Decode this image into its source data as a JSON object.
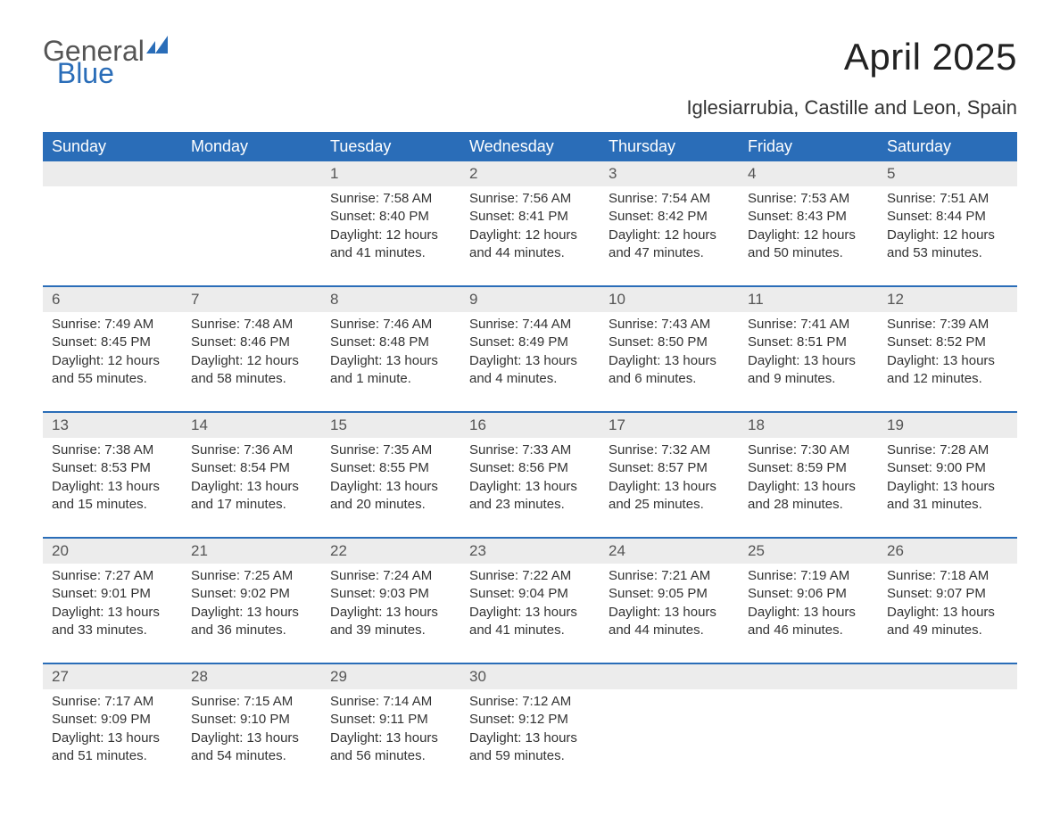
{
  "brand": {
    "word1": "General",
    "word2": "Blue",
    "logo_color": "#2a6db8",
    "text_color": "#555555"
  },
  "title": "April 2025",
  "location": "Iglesiarrubia, Castille and Leon, Spain",
  "colors": {
    "header_bg": "#2a6db8",
    "header_text": "#ffffff",
    "daynum_bg": "#ececec",
    "daynum_text": "#555555",
    "body_text": "#333333",
    "week_divider": "#2a6db8",
    "page_bg": "#ffffff"
  },
  "fonts": {
    "family": "Arial, Helvetica, sans-serif",
    "title_size_pt": 32,
    "location_size_pt": 16,
    "header_size_pt": 14,
    "body_size_pt": 11
  },
  "day_headers": [
    "Sunday",
    "Monday",
    "Tuesday",
    "Wednesday",
    "Thursday",
    "Friday",
    "Saturday"
  ],
  "weeks": [
    [
      {
        "day": "",
        "sunrise": "",
        "sunset": "",
        "daylight": ""
      },
      {
        "day": "",
        "sunrise": "",
        "sunset": "",
        "daylight": ""
      },
      {
        "day": "1",
        "sunrise": "Sunrise: 7:58 AM",
        "sunset": "Sunset: 8:40 PM",
        "daylight": "Daylight: 12 hours and 41 minutes."
      },
      {
        "day": "2",
        "sunrise": "Sunrise: 7:56 AM",
        "sunset": "Sunset: 8:41 PM",
        "daylight": "Daylight: 12 hours and 44 minutes."
      },
      {
        "day": "3",
        "sunrise": "Sunrise: 7:54 AM",
        "sunset": "Sunset: 8:42 PM",
        "daylight": "Daylight: 12 hours and 47 minutes."
      },
      {
        "day": "4",
        "sunrise": "Sunrise: 7:53 AM",
        "sunset": "Sunset: 8:43 PM",
        "daylight": "Daylight: 12 hours and 50 minutes."
      },
      {
        "day": "5",
        "sunrise": "Sunrise: 7:51 AM",
        "sunset": "Sunset: 8:44 PM",
        "daylight": "Daylight: 12 hours and 53 minutes."
      }
    ],
    [
      {
        "day": "6",
        "sunrise": "Sunrise: 7:49 AM",
        "sunset": "Sunset: 8:45 PM",
        "daylight": "Daylight: 12 hours and 55 minutes."
      },
      {
        "day": "7",
        "sunrise": "Sunrise: 7:48 AM",
        "sunset": "Sunset: 8:46 PM",
        "daylight": "Daylight: 12 hours and 58 minutes."
      },
      {
        "day": "8",
        "sunrise": "Sunrise: 7:46 AM",
        "sunset": "Sunset: 8:48 PM",
        "daylight": "Daylight: 13 hours and 1 minute."
      },
      {
        "day": "9",
        "sunrise": "Sunrise: 7:44 AM",
        "sunset": "Sunset: 8:49 PM",
        "daylight": "Daylight: 13 hours and 4 minutes."
      },
      {
        "day": "10",
        "sunrise": "Sunrise: 7:43 AM",
        "sunset": "Sunset: 8:50 PM",
        "daylight": "Daylight: 13 hours and 6 minutes."
      },
      {
        "day": "11",
        "sunrise": "Sunrise: 7:41 AM",
        "sunset": "Sunset: 8:51 PM",
        "daylight": "Daylight: 13 hours and 9 minutes."
      },
      {
        "day": "12",
        "sunrise": "Sunrise: 7:39 AM",
        "sunset": "Sunset: 8:52 PM",
        "daylight": "Daylight: 13 hours and 12 minutes."
      }
    ],
    [
      {
        "day": "13",
        "sunrise": "Sunrise: 7:38 AM",
        "sunset": "Sunset: 8:53 PM",
        "daylight": "Daylight: 13 hours and 15 minutes."
      },
      {
        "day": "14",
        "sunrise": "Sunrise: 7:36 AM",
        "sunset": "Sunset: 8:54 PM",
        "daylight": "Daylight: 13 hours and 17 minutes."
      },
      {
        "day": "15",
        "sunrise": "Sunrise: 7:35 AM",
        "sunset": "Sunset: 8:55 PM",
        "daylight": "Daylight: 13 hours and 20 minutes."
      },
      {
        "day": "16",
        "sunrise": "Sunrise: 7:33 AM",
        "sunset": "Sunset: 8:56 PM",
        "daylight": "Daylight: 13 hours and 23 minutes."
      },
      {
        "day": "17",
        "sunrise": "Sunrise: 7:32 AM",
        "sunset": "Sunset: 8:57 PM",
        "daylight": "Daylight: 13 hours and 25 minutes."
      },
      {
        "day": "18",
        "sunrise": "Sunrise: 7:30 AM",
        "sunset": "Sunset: 8:59 PM",
        "daylight": "Daylight: 13 hours and 28 minutes."
      },
      {
        "day": "19",
        "sunrise": "Sunrise: 7:28 AM",
        "sunset": "Sunset: 9:00 PM",
        "daylight": "Daylight: 13 hours and 31 minutes."
      }
    ],
    [
      {
        "day": "20",
        "sunrise": "Sunrise: 7:27 AM",
        "sunset": "Sunset: 9:01 PM",
        "daylight": "Daylight: 13 hours and 33 minutes."
      },
      {
        "day": "21",
        "sunrise": "Sunrise: 7:25 AM",
        "sunset": "Sunset: 9:02 PM",
        "daylight": "Daylight: 13 hours and 36 minutes."
      },
      {
        "day": "22",
        "sunrise": "Sunrise: 7:24 AM",
        "sunset": "Sunset: 9:03 PM",
        "daylight": "Daylight: 13 hours and 39 minutes."
      },
      {
        "day": "23",
        "sunrise": "Sunrise: 7:22 AM",
        "sunset": "Sunset: 9:04 PM",
        "daylight": "Daylight: 13 hours and 41 minutes."
      },
      {
        "day": "24",
        "sunrise": "Sunrise: 7:21 AM",
        "sunset": "Sunset: 9:05 PM",
        "daylight": "Daylight: 13 hours and 44 minutes."
      },
      {
        "day": "25",
        "sunrise": "Sunrise: 7:19 AM",
        "sunset": "Sunset: 9:06 PM",
        "daylight": "Daylight: 13 hours and 46 minutes."
      },
      {
        "day": "26",
        "sunrise": "Sunrise: 7:18 AM",
        "sunset": "Sunset: 9:07 PM",
        "daylight": "Daylight: 13 hours and 49 minutes."
      }
    ],
    [
      {
        "day": "27",
        "sunrise": "Sunrise: 7:17 AM",
        "sunset": "Sunset: 9:09 PM",
        "daylight": "Daylight: 13 hours and 51 minutes."
      },
      {
        "day": "28",
        "sunrise": "Sunrise: 7:15 AM",
        "sunset": "Sunset: 9:10 PM",
        "daylight": "Daylight: 13 hours and 54 minutes."
      },
      {
        "day": "29",
        "sunrise": "Sunrise: 7:14 AM",
        "sunset": "Sunset: 9:11 PM",
        "daylight": "Daylight: 13 hours and 56 minutes."
      },
      {
        "day": "30",
        "sunrise": "Sunrise: 7:12 AM",
        "sunset": "Sunset: 9:12 PM",
        "daylight": "Daylight: 13 hours and 59 minutes."
      },
      {
        "day": "",
        "sunrise": "",
        "sunset": "",
        "daylight": ""
      },
      {
        "day": "",
        "sunrise": "",
        "sunset": "",
        "daylight": ""
      },
      {
        "day": "",
        "sunrise": "",
        "sunset": "",
        "daylight": ""
      }
    ]
  ]
}
